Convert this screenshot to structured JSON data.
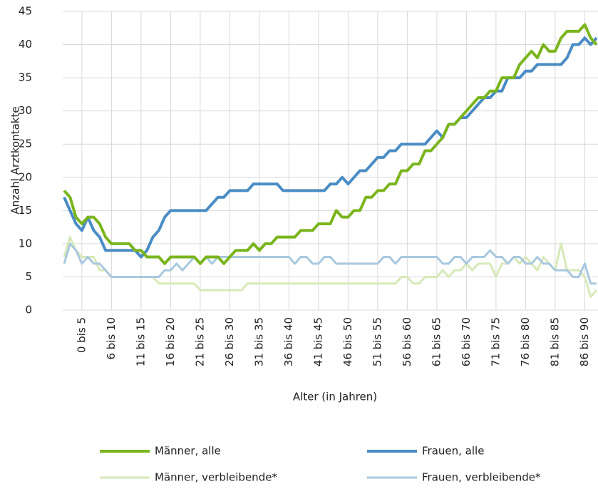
{
  "chart_data": {
    "type": "line",
    "x_label": "Alter (in Jahren)",
    "y_label": "Anzahl Arztkontakte",
    "categories": [
      null,
      null,
      null,
      "0 bis 5",
      null,
      null,
      null,
      null,
      "6 bis 10",
      null,
      null,
      null,
      null,
      "11 bis 15",
      null,
      null,
      null,
      null,
      "16 bis 20",
      null,
      null,
      null,
      null,
      "21 bis 25",
      null,
      null,
      null,
      null,
      "26 bis 30",
      null,
      null,
      null,
      null,
      "31 bis 35",
      null,
      null,
      null,
      null,
      "36 bis 40",
      null,
      null,
      null,
      null,
      "41 bis 45",
      null,
      null,
      null,
      null,
      "46 bis 50",
      null,
      null,
      null,
      null,
      "51 bis 55",
      null,
      null,
      null,
      null,
      "56 bis 60",
      null,
      null,
      null,
      null,
      "61 bis 65",
      null,
      null,
      null,
      null,
      "66 bis 70",
      null,
      null,
      null,
      null,
      "71 bis 75",
      null,
      null,
      null,
      null,
      "76 bis 80",
      null,
      null,
      null,
      null,
      "81 bis 85",
      null,
      null,
      null,
      null,
      "86 bis 90",
      null,
      null
    ],
    "series": [
      {
        "name": "Männer, alle",
        "color": "#7ab51d",
        "width": 4,
        "values": [
          18,
          17,
          14,
          13,
          14,
          14,
          13,
          11,
          10,
          10,
          10,
          10,
          9,
          9,
          8,
          8,
          8,
          7,
          8,
          8,
          8,
          8,
          8,
          7,
          8,
          8,
          8,
          7,
          8,
          9,
          9,
          9,
          10,
          9,
          10,
          10,
          11,
          11,
          11,
          11,
          12,
          12,
          12,
          13,
          13,
          13,
          15,
          14,
          14,
          15,
          15,
          17,
          17,
          18,
          18,
          19,
          19,
          21,
          21,
          22,
          22,
          24,
          24,
          25,
          26,
          28,
          28,
          29,
          30,
          31,
          32,
          32,
          33,
          33,
          35,
          35,
          35,
          37,
          38,
          39,
          38,
          40,
          39,
          39,
          41,
          42,
          42,
          42,
          43,
          41,
          40
        ]
      },
      {
        "name": "Frauen, alle",
        "color": "#4a8cc4",
        "width": 4,
        "values": [
          17,
          15,
          13,
          12,
          14,
          12,
          11,
          9,
          9,
          9,
          9,
          9,
          9,
          8,
          9,
          11,
          12,
          14,
          15,
          15,
          15,
          15,
          15,
          15,
          15,
          16,
          17,
          17,
          18,
          18,
          18,
          18,
          19,
          19,
          19,
          19,
          19,
          18,
          18,
          18,
          18,
          18,
          18,
          18,
          18,
          19,
          19,
          20,
          19,
          20,
          21,
          21,
          22,
          23,
          23,
          24,
          24,
          25,
          25,
          25,
          25,
          25,
          26,
          27,
          26,
          28,
          28,
          29,
          29,
          30,
          31,
          32,
          32,
          33,
          33,
          35,
          35,
          35,
          36,
          36,
          37,
          37,
          37,
          37,
          37,
          38,
          40,
          40,
          41,
          40,
          41
        ]
      },
      {
        "name": "Männer, verbleibende*",
        "color": "#d7e9b8",
        "width": 3,
        "values": [
          8,
          11,
          9,
          8,
          8,
          8,
          6,
          6,
          5,
          5,
          5,
          5,
          5,
          5,
          5,
          5,
          4,
          4,
          4,
          4,
          4,
          4,
          4,
          3,
          3,
          3,
          3,
          3,
          3,
          3,
          3,
          4,
          4,
          4,
          4,
          4,
          4,
          4,
          4,
          4,
          4,
          4,
          4,
          4,
          4,
          4,
          4,
          4,
          4,
          4,
          4,
          4,
          4,
          4,
          4,
          4,
          4,
          5,
          5,
          4,
          4,
          5,
          5,
          5,
          6,
          5,
          6,
          6,
          7,
          6,
          7,
          7,
          7,
          5,
          7,
          7,
          8,
          7,
          8,
          7,
          6,
          8,
          7,
          6,
          10,
          6,
          6,
          6,
          5,
          2,
          3
        ]
      },
      {
        "name": "Frauen, verbleibende*",
        "color": "#a8c8df",
        "width": 3,
        "values": [
          7,
          10,
          9,
          7,
          8,
          7,
          7,
          6,
          5,
          5,
          5,
          5,
          5,
          5,
          5,
          5,
          5,
          6,
          6,
          7,
          6,
          7,
          8,
          7,
          8,
          7,
          8,
          8,
          8,
          8,
          8,
          8,
          8,
          8,
          8,
          8,
          8,
          8,
          8,
          7,
          8,
          8,
          7,
          7,
          8,
          8,
          7,
          7,
          7,
          7,
          7,
          7,
          7,
          7,
          8,
          8,
          7,
          8,
          8,
          8,
          8,
          8,
          8,
          8,
          7,
          7,
          8,
          8,
          7,
          8,
          8,
          8,
          9,
          8,
          8,
          7,
          8,
          8,
          7,
          7,
          8,
          7,
          7,
          6,
          6,
          6,
          5,
          5,
          7,
          4,
          4
        ]
      }
    ],
    "ylim": [
      0,
      45
    ],
    "yticks": [
      0,
      5,
      10,
      15,
      20,
      25,
      30,
      35,
      40,
      45
    ],
    "grid": true,
    "legend": "bottom"
  }
}
